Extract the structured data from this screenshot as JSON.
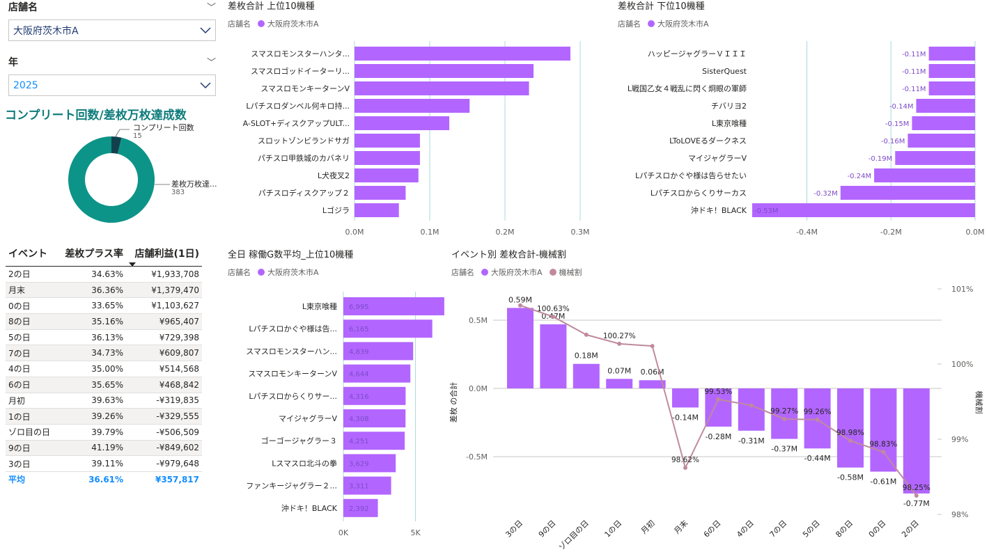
{
  "slicers": {
    "store": {
      "label": "店舗名",
      "value": "大阪府茨木市A"
    },
    "year": {
      "label": "年",
      "value": "2025"
    }
  },
  "donut": {
    "title": "コンプリート回数/差枚万枚達成数",
    "colors": {
      "complete": "#12414e",
      "achieve": "#0d9488"
    }
  },
  "table": {
    "headers": [
      "イベント",
      "差枚プラス率",
      "店舗利益(1日)"
    ],
    "rows": [
      [
        "2の日",
        "34.63%",
        "¥1,933,708"
      ],
      [
        "月末",
        "36.36%",
        "¥1,379,470"
      ],
      [
        "0の日",
        "33.65%",
        "¥1,103,627"
      ],
      [
        "8の日",
        "35.16%",
        "¥965,407"
      ],
      [
        "5の日",
        "36.13%",
        "¥729,398"
      ],
      [
        "7の日",
        "34.73%",
        "¥609,807"
      ],
      [
        "4の日",
        "35.00%",
        "¥514,568"
      ],
      [
        "6の日",
        "35.65%",
        "¥468,842"
      ],
      [
        "月初",
        "39.63%",
        "-¥319,835"
      ],
      [
        "1の日",
        "39.26%",
        "-¥329,555"
      ],
      [
        "ゾロ目の日",
        "39.79%",
        "-¥506,509"
      ],
      [
        "9の日",
        "41.19%",
        "-¥849,602"
      ],
      [
        "3の日",
        "39.11%",
        "-¥979,648"
      ]
    ],
    "total": [
      "平均",
      "36.61%",
      "¥357,817"
    ]
  },
  "legend_label": "店舗名",
  "series_color": "#b266ff",
  "line_color": "#c08a9e",
  "chart_data": [
    {
      "type": "bar",
      "title": "差枚合計 上位10機種",
      "legend": [
        "大阪府茨木市A"
      ],
      "categories": [
        "スマスロモンスターハンタ...",
        "スマスロゴッドイーターリ...",
        "スマスロモンキーターンV",
        "Lパチスロダンベル何キロ持...",
        "A-SLOT+ディスクアップULT...",
        "スロットゾンビランドサガ",
        "パチスロ甲鉄城のカバネリ",
        "L犬夜叉2",
        "パチスロディスクアップ２",
        "Lゴジラ"
      ],
      "values": [
        0.287,
        0.238,
        0.232,
        0.153,
        0.126,
        0.087,
        0.087,
        0.085,
        0.068,
        0.059
      ],
      "xlim": [
        0,
        0.3
      ],
      "ticks": [
        "0.0M",
        "0.1M",
        "0.2M",
        "0.3M"
      ],
      "grid": true
    },
    {
      "type": "bar",
      "title": "差枚合計 下位10機種",
      "legend": [
        "大阪府茨木市A"
      ],
      "categories": [
        "ハッピージャグラーＶＩＩＩ",
        "SisterQuest",
        "L戦国乙女４戦乱に閃く炯眼の軍師",
        "チバリヨ2",
        "L東京喰種",
        "LToLOVEるダークネス",
        "マイジャグラーV",
        "Lパチスロかぐや様は告らせたい",
        "Lパチスロからくりサーカス",
        "沖ドキ！BLACK"
      ],
      "values": [
        -0.11,
        -0.11,
        -0.11,
        -0.14,
        -0.15,
        -0.16,
        -0.19,
        -0.24,
        -0.32,
        -0.53
      ],
      "labels": [
        "-0.11M",
        "-0.11M",
        "-0.11M",
        "-0.14M",
        "-0.15M",
        "-0.16M",
        "-0.19M",
        "-0.24M",
        "-0.32M",
        "-0.53M"
      ],
      "xlim": [
        -0.53,
        0
      ],
      "ticks": [
        "-0.4M",
        "-0.2M",
        "0.0M"
      ],
      "grid": true
    },
    {
      "type": "bar",
      "title": "全日 稼働G数平均_上位10機種",
      "legend": [
        "大阪府茨木市A"
      ],
      "categories": [
        "L東京喰種",
        "Lパチスロかぐや様は告...",
        "スマスロモンスターハン...",
        "スマスロモンキーターンV",
        "Lパチスロからくりサー...",
        "マイジャグラーV",
        "ゴーゴージャグラー３",
        "Lスマスロ北斗の拳",
        "ファンキージャグラー２...",
        "沖ドキ！BLACK"
      ],
      "values": [
        6995,
        6165,
        4839,
        4644,
        4316,
        4308,
        4251,
        3629,
        3311,
        2392
      ],
      "labels": [
        "6,995",
        "6,165",
        "4,839",
        "4,644",
        "4,316",
        "4,308",
        "4,251",
        "3,629",
        "3,311",
        "2,392"
      ],
      "xlim": [
        0,
        7000
      ],
      "ticks": [
        "0K",
        "5K"
      ],
      "grid": true
    },
    {
      "type": "bar",
      "title": "イベント別 差枚合計-機械割",
      "legend": [
        "大阪府茨木市A",
        "機械割"
      ],
      "ylabel": "差枚 の合計",
      "y2label": "機械割",
      "categories": [
        "3の日",
        "9の日",
        "ゾロ目の日",
        "1の日",
        "月初",
        "月末",
        "6の日",
        "4の日",
        "7の日",
        "5の日",
        "8の日",
        "0の日",
        "2の日"
      ],
      "bar_values": [
        0.59,
        0.47,
        0.18,
        0.07,
        0.06,
        -0.14,
        -0.28,
        -0.31,
        -0.37,
        -0.44,
        -0.58,
        -0.61,
        -0.77
      ],
      "bar_labels": [
        "0.59M",
        "0.47M",
        "0.18M",
        "0.07M",
        "0.06M",
        "-0.14M",
        "-0.28M",
        "-0.31M",
        "-0.37M",
        "-0.44M",
        "-0.58M",
        "-0.61M",
        "-0.77M"
      ],
      "line_values": [
        100.78,
        100.63,
        100.39,
        100.27,
        100.24,
        98.62,
        99.53,
        99.45,
        99.27,
        99.26,
        98.98,
        98.83,
        98.25
      ],
      "line_labels": [
        "",
        "100.63%",
        "",
        "100.27%",
        "",
        "98.62%",
        "99.53%",
        "",
        "99.27%",
        "99.26%",
        "98.98%",
        "98.83%",
        "98.25%"
      ],
      "ylim": [
        -0.77,
        0.59
      ],
      "y_ticks": [
        "0.5M",
        "0.0M",
        "-0.5M"
      ],
      "y2lim": [
        98,
        101
      ],
      "y2_ticks": [
        "101%",
        "100%",
        "99%",
        "98%"
      ]
    }
  ]
}
